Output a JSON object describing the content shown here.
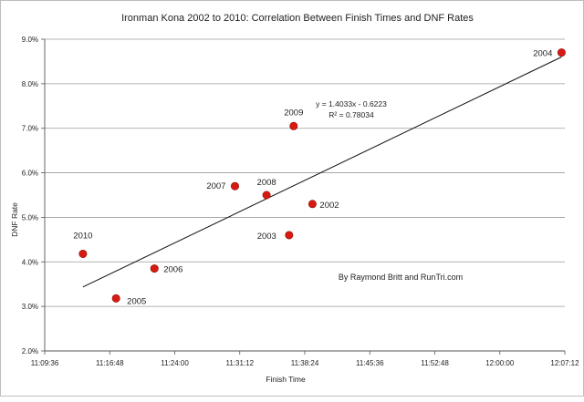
{
  "chart_data": {
    "type": "scatter",
    "title": "Ironman Kona 2002 to 2010: Correlation Between Finish Times and DNF Rates",
    "xlabel": "Finish Time",
    "ylabel": "DNF Rate",
    "xlim": [
      "11:09:36",
      "12:07:12"
    ],
    "ylim": [
      0.02,
      0.09
    ],
    "xticks": [
      "11:09:36",
      "11:16:48",
      "11:24:00",
      "11:31:12",
      "11:38:24",
      "11:45:36",
      "11:52:48",
      "12:00:00",
      "12:07:12"
    ],
    "yticks": [
      "2.0%",
      "3.0%",
      "4.0%",
      "5.0%",
      "6.0%",
      "7.0%",
      "8.0%",
      "9.0%"
    ],
    "grid": "horizontal",
    "marker_color": "#d81b12",
    "points": [
      {
        "label": "2002",
        "x": "11:39:15",
        "y": 0.053
      },
      {
        "label": "2003",
        "x": "11:36:40",
        "y": 0.046
      },
      {
        "label": "2004",
        "x": "12:06:50",
        "y": 0.087
      },
      {
        "label": "2005",
        "x": "11:17:30",
        "y": 0.0318
      },
      {
        "label": "2006",
        "x": "11:21:45",
        "y": 0.0385
      },
      {
        "label": "2007",
        "x": "11:30:40",
        "y": 0.057
      },
      {
        "label": "2008",
        "x": "11:34:10",
        "y": 0.055
      },
      {
        "label": "2009",
        "x": "11:37:10",
        "y": 0.0705
      },
      {
        "label": "2010",
        "x": "11:13:50",
        "y": 0.0418
      }
    ],
    "trendline": {
      "equation": "y = 1.4033x - 0.6223",
      "r_squared": "R² = 0.78034",
      "slope": 1.4033,
      "intercept": -0.6223,
      "x_range": [
        "11:13:50",
        "12:06:50"
      ]
    },
    "annotation": "By Raymond Britt and RunTri.com"
  }
}
